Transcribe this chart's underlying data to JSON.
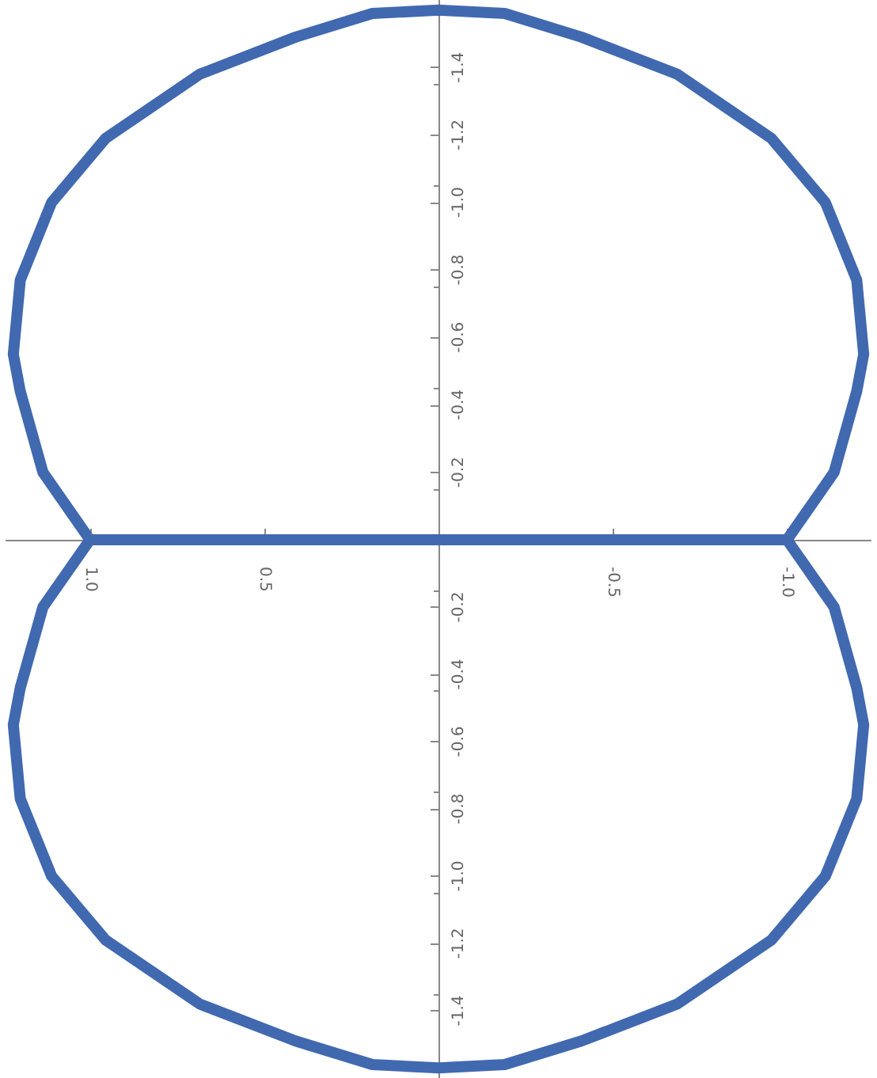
{
  "chart_data": [
    {
      "type": "line",
      "x": [
        1,
        1.135,
        1.2,
        1.22,
        1.2,
        1.11,
        0.955,
        0.685,
        0.41,
        0.19,
        0,
        -0.19,
        -0.41,
        -0.685,
        -0.955,
        -1.11,
        -1.2,
        -1.22,
        -1.2,
        -1.135,
        -1
      ],
      "series": [
        {
          "color": "#4169b0",
          "values": [
            0,
            -0.2,
            -0.44,
            -0.55,
            -0.77,
            -1,
            -1.19,
            -1.38,
            -1.49,
            -1.56,
            -1.57,
            -1.56,
            -1.49,
            -1.38,
            -1.19,
            -1,
            -0.77,
            -0.55,
            -0.44,
            -0.2,
            0
          ]
        }
      ],
      "xlim": [
        1.24,
        -1.24
      ],
      "xticks": [
        1,
        0.5,
        -0.5,
        -1
      ],
      "ylim": [
        0,
        -1.6
      ],
      "yticks": [
        -1.4,
        -1.2,
        {
          "value": -1,
          "label": "-1.0"
        },
        -0.8,
        -0.6,
        -0.4,
        -0.2
      ],
      "tick_labels": "y",
      "grid": false,
      "line_style": "solid"
    },
    {
      "type": "line",
      "x": [
        -1,
        -1.135,
        -1.2,
        -1.22,
        -1.2,
        -1.11,
        -0.955,
        -0.685,
        -0.41,
        -0.19,
        0,
        0.19,
        0.41,
        0.685,
        0.955,
        1.11,
        1.2,
        1.22,
        1.2,
        1.135,
        1
      ],
      "series": [
        {
          "color": "#4169b0",
          "values": [
            0,
            -0.2,
            -0.44,
            -0.55,
            -0.77,
            -1,
            -1.19,
            -1.38,
            -1.49,
            -1.56,
            -1.57,
            -1.56,
            -1.49,
            -1.38,
            -1.19,
            -1,
            -0.77,
            -0.55,
            -0.44,
            -0.2,
            0
          ]
        },
        {
          "color": "#4169b0",
          "x": [
            1,
            -1
          ],
          "values": [
            0,
            0
          ]
        }
      ],
      "xlim": [
        1.24,
        -1.24
      ],
      "xticks": [
        {
          "value": 1,
          "label": "1.0"
        },
        0.5,
        -0.5,
        {
          "value": -1,
          "label": "-1.0"
        }
      ],
      "ylim": [
        -1.6,
        0
      ],
      "yticks": [
        -1.4,
        -1.2,
        {
          "value": -1,
          "label": "-1.0"
        },
        -0.8,
        -0.6,
        -0.4,
        -0.2
      ],
      "grid": false,
      "line_style": "solid"
    }
  ]
}
